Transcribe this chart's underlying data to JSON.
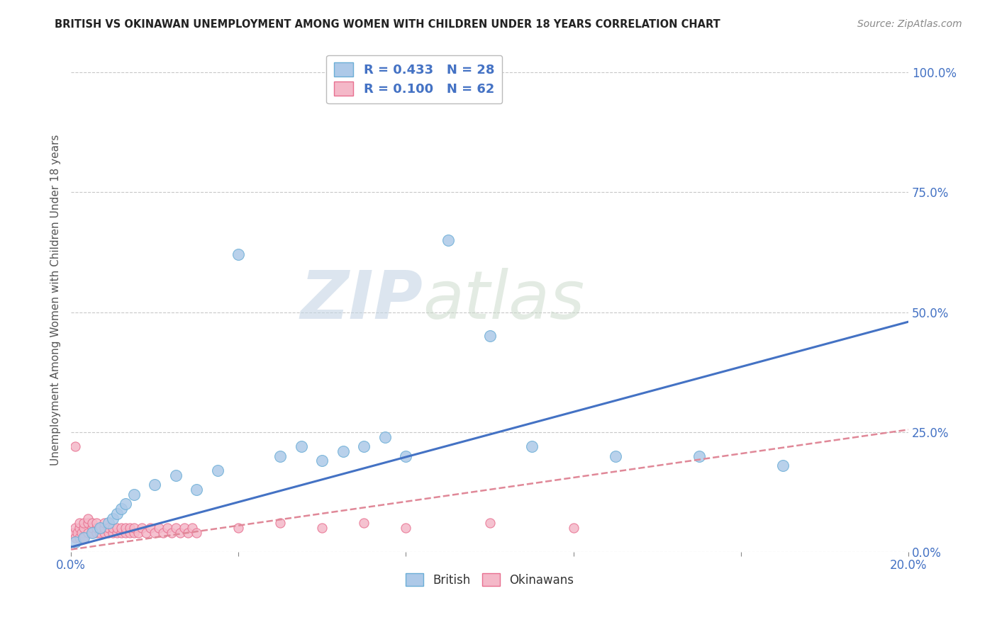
{
  "title": "BRITISH VS OKINAWAN UNEMPLOYMENT AMONG WOMEN WITH CHILDREN UNDER 18 YEARS CORRELATION CHART",
  "source": "Source: ZipAtlas.com",
  "ylabel": "Unemployment Among Women with Children Under 18 years",
  "xlim": [
    0.0,
    0.2
  ],
  "ylim": [
    0.0,
    1.05
  ],
  "yticks_right": [
    0.0,
    0.25,
    0.5,
    0.75,
    1.0
  ],
  "yticklabels_right": [
    "0.0%",
    "25.0%",
    "50.0%",
    "75.0%",
    "100.0%"
  ],
  "british_color": "#adc9e8",
  "british_edge_color": "#6baed6",
  "okinawan_color": "#f4b8c8",
  "okinawan_edge_color": "#e87090",
  "british_R": 0.433,
  "british_N": 28,
  "okinawan_R": 0.1,
  "okinawan_N": 62,
  "british_line_color": "#4472c4",
  "okinawan_line_color": "#e08898",
  "watermark_zip": "ZIP",
  "watermark_atlas": "atlas",
  "background_color": "#ffffff",
  "grid_color": "#c8c8c8",
  "british_x": [
    0.001,
    0.003,
    0.005,
    0.007,
    0.009,
    0.01,
    0.011,
    0.012,
    0.013,
    0.015,
    0.02,
    0.025,
    0.03,
    0.035,
    0.04,
    0.05,
    0.055,
    0.06,
    0.065,
    0.07,
    0.075,
    0.08,
    0.09,
    0.1,
    0.11,
    0.13,
    0.15,
    0.17
  ],
  "british_y": [
    0.02,
    0.03,
    0.04,
    0.05,
    0.06,
    0.07,
    0.08,
    0.09,
    0.1,
    0.12,
    0.14,
    0.16,
    0.13,
    0.17,
    0.62,
    0.2,
    0.22,
    0.19,
    0.21,
    0.22,
    0.24,
    0.2,
    0.65,
    0.45,
    0.22,
    0.2,
    0.2,
    0.18
  ],
  "okinawan_x": [
    0.0005,
    0.001,
    0.001,
    0.0015,
    0.002,
    0.002,
    0.002,
    0.0025,
    0.003,
    0.003,
    0.003,
    0.004,
    0.004,
    0.004,
    0.005,
    0.005,
    0.005,
    0.006,
    0.006,
    0.006,
    0.007,
    0.007,
    0.008,
    0.008,
    0.008,
    0.009,
    0.009,
    0.01,
    0.01,
    0.011,
    0.011,
    0.012,
    0.012,
    0.013,
    0.013,
    0.014,
    0.014,
    0.015,
    0.015,
    0.016,
    0.017,
    0.018,
    0.019,
    0.02,
    0.021,
    0.022,
    0.023,
    0.024,
    0.025,
    0.026,
    0.027,
    0.028,
    0.029,
    0.03,
    0.04,
    0.05,
    0.06,
    0.07,
    0.08,
    0.1,
    0.12,
    0.001
  ],
  "okinawan_y": [
    0.04,
    0.03,
    0.05,
    0.04,
    0.03,
    0.05,
    0.06,
    0.04,
    0.03,
    0.05,
    0.06,
    0.04,
    0.06,
    0.07,
    0.04,
    0.05,
    0.06,
    0.04,
    0.05,
    0.06,
    0.04,
    0.05,
    0.04,
    0.05,
    0.06,
    0.04,
    0.05,
    0.04,
    0.05,
    0.04,
    0.05,
    0.04,
    0.05,
    0.04,
    0.05,
    0.04,
    0.05,
    0.04,
    0.05,
    0.04,
    0.05,
    0.04,
    0.05,
    0.04,
    0.05,
    0.04,
    0.05,
    0.04,
    0.05,
    0.04,
    0.05,
    0.04,
    0.05,
    0.04,
    0.05,
    0.06,
    0.05,
    0.06,
    0.05,
    0.06,
    0.05,
    0.22
  ]
}
